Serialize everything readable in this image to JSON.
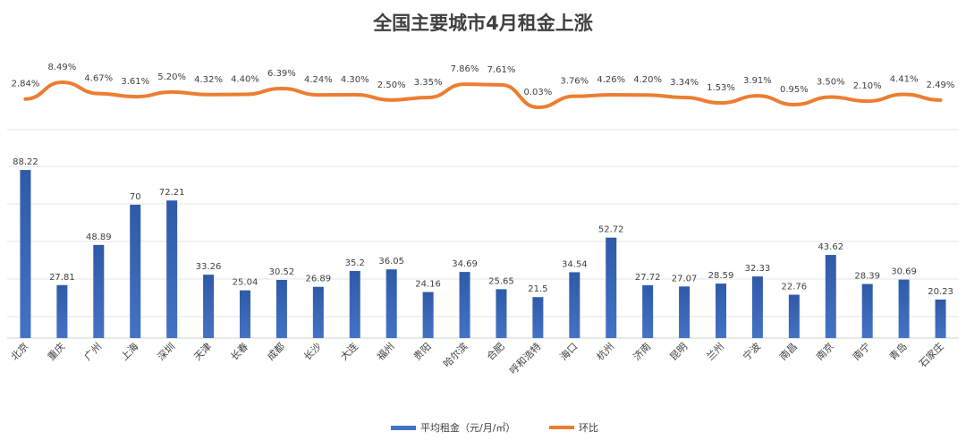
{
  "chart_data": {
    "type": "bar",
    "title": "全国主要城市4月租金上涨",
    "categories": [
      "北京",
      "重庆",
      "广州",
      "上海",
      "深圳",
      "天津",
      "长春",
      "成都",
      "长沙",
      "大连",
      "福州",
      "贵阳",
      "哈尔滨",
      "合肥",
      "呼和浩特",
      "海口",
      "杭州",
      "济南",
      "昆明",
      "兰州",
      "宁波",
      "南昌",
      "南京",
      "南宁",
      "青岛",
      "石家庄"
    ],
    "series": [
      {
        "name": "平均租金（元/月/㎡）",
        "type": "bar",
        "color": "#4472C4",
        "values": [
          88.22,
          27.81,
          48.89,
          70,
          72.21,
          33.26,
          25.04,
          30.52,
          26.89,
          35.2,
          36.05,
          24.16,
          34.69,
          25.65,
          21.5,
          34.54,
          52.72,
          27.72,
          27.07,
          28.59,
          32.33,
          22.76,
          43.62,
          28.39,
          30.69,
          20.23
        ],
        "labels": [
          "88.22",
          "27.81",
          "48.89",
          "70",
          "72.21",
          "33.26",
          "25.04",
          "30.52",
          "26.89",
          "35.2",
          "36.05",
          "24.16",
          "34.69",
          "25.65",
          "21.5",
          "34.54",
          "52.72",
          "27.72",
          "27.07",
          "28.59",
          "32.33",
          "22.76",
          "43.62",
          "28.39",
          "30.69",
          "20.23"
        ]
      },
      {
        "name": "环比",
        "type": "line",
        "color": "#ED7D31",
        "values": [
          2.84,
          8.49,
          4.67,
          3.61,
          5.2,
          4.32,
          4.4,
          6.39,
          4.24,
          4.3,
          2.5,
          3.35,
          7.86,
          7.61,
          0.03,
          3.76,
          4.26,
          4.2,
          3.34,
          1.53,
          3.91,
          0.95,
          3.5,
          2.1,
          4.41,
          2.49
        ],
        "labels": [
          "2.84%",
          "8.49%",
          "4.67%",
          "3.61%",
          "5.20%",
          "4.32%",
          "4.40%",
          "6.39%",
          "4.24%",
          "4.30%",
          "2.50%",
          "3.35%",
          "7.86%",
          "7.61%",
          "0.03%",
          "3.76%",
          "4.26%",
          "4.20%",
          "3.34%",
          "1.53%",
          "3.91%",
          "0.95%",
          "3.50%",
          "2.10%",
          "4.41%",
          "2.49%"
        ]
      }
    ],
    "ylim_bar": [
      0,
      100
    ],
    "legend_position": "bottom",
    "grid": true
  }
}
